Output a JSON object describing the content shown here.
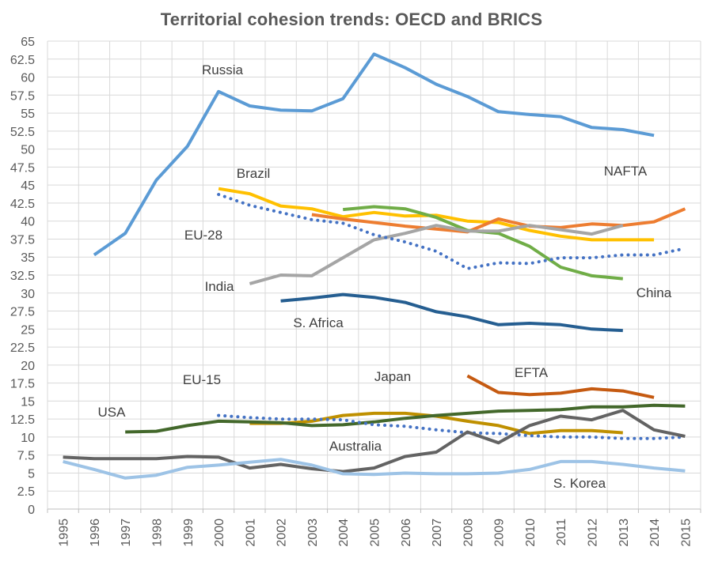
{
  "chart_data": {
    "type": "line",
    "title": "Territorial cohesion trends: OECD and BRICS",
    "xlabel": "",
    "ylabel": "",
    "ylim": [
      0,
      65
    ],
    "yticks": [
      "0",
      "2.5",
      "5",
      "7.5",
      "10",
      "12.5",
      "15",
      "17.5",
      "20",
      "22.5",
      "25",
      "27.5",
      "30",
      "32.5",
      "35",
      "37.5",
      "40",
      "42.5",
      "45",
      "47.5",
      "50",
      "52.5",
      "55",
      "57.5",
      "60",
      "62.5",
      "65"
    ],
    "x": [
      "1995",
      "1996",
      "1997",
      "1998",
      "1999",
      "2000",
      "2001",
      "2002",
      "2003",
      "2004",
      "2005",
      "2006",
      "2007",
      "2008",
      "2009",
      "2010",
      "2011",
      "2012",
      "2013",
      "2014",
      "2015"
    ],
    "grid": true,
    "legend": "inline labels",
    "series": [
      {
        "name": "Russia",
        "color": "#5b9bd5",
        "dash": false,
        "values": [
          null,
          35.3,
          38.3,
          45.7,
          50.4,
          58.0,
          56.0,
          55.4,
          55.3,
          57.0,
          63.2,
          61.3,
          59.0,
          57.3,
          55.2,
          54.8,
          54.5,
          53.0,
          52.7,
          51.9,
          null
        ]
      },
      {
        "name": "Brazil",
        "color": "#ffc000",
        "dash": false,
        "values": [
          null,
          null,
          null,
          null,
          null,
          44.5,
          43.8,
          42.1,
          41.7,
          40.6,
          41.2,
          40.7,
          40.8,
          40.0,
          39.8,
          38.7,
          37.9,
          37.4,
          37.4,
          37.4,
          null
        ]
      },
      {
        "name": "NAFTA",
        "color": "#ed7d31",
        "dash": false,
        "values": [
          null,
          null,
          null,
          null,
          null,
          null,
          null,
          null,
          40.9,
          40.3,
          39.8,
          39.3,
          38.9,
          38.5,
          40.3,
          39.3,
          39.1,
          39.6,
          39.4,
          39.9,
          41.7
        ]
      },
      {
        "name": "China",
        "color": "#70ad47",
        "dash": false,
        "values": [
          null,
          null,
          null,
          null,
          null,
          null,
          null,
          null,
          null,
          41.6,
          42.0,
          41.7,
          40.5,
          38.7,
          38.3,
          36.5,
          33.6,
          32.4,
          32.0,
          null,
          null
        ]
      },
      {
        "name": "India",
        "color": "#a5a5a5",
        "dash": false,
        "values": [
          null,
          null,
          null,
          null,
          null,
          null,
          31.3,
          32.5,
          32.4,
          34.9,
          37.4,
          38.3,
          39.4,
          38.6,
          38.6,
          39.4,
          38.8,
          38.2,
          39.4,
          null,
          null
        ]
      },
      {
        "name": "EU-28",
        "color": "#4472c4",
        "dash": true,
        "values": [
          null,
          null,
          null,
          null,
          null,
          43.7,
          42.2,
          41.2,
          40.2,
          39.7,
          38.1,
          37.1,
          35.8,
          33.4,
          34.2,
          34.1,
          34.9,
          34.9,
          35.3,
          35.3,
          36.2
        ]
      },
      {
        "name": "S. Africa",
        "color": "#255e91",
        "dash": false,
        "values": [
          null,
          null,
          null,
          null,
          null,
          null,
          null,
          28.9,
          29.3,
          29.8,
          29.4,
          28.7,
          27.4,
          26.7,
          25.6,
          25.8,
          25.6,
          25.0,
          24.8,
          null,
          null
        ]
      },
      {
        "name": "EFTA",
        "color": "#c55a11",
        "dash": false,
        "values": [
          null,
          null,
          null,
          null,
          null,
          null,
          null,
          null,
          null,
          null,
          null,
          null,
          null,
          18.5,
          16.2,
          15.9,
          16.1,
          16.7,
          16.4,
          15.5,
          null
        ]
      },
      {
        "name": "Japan",
        "color": "#bf9000",
        "dash": false,
        "values": [
          null,
          null,
          null,
          null,
          null,
          null,
          11.9,
          11.9,
          12.2,
          13.0,
          13.3,
          13.3,
          12.9,
          12.2,
          11.6,
          10.5,
          10.9,
          10.9,
          10.6,
          null,
          null
        ]
      },
      {
        "name": "USA",
        "color": "#43682b",
        "dash": false,
        "values": [
          null,
          null,
          10.7,
          10.8,
          11.6,
          12.2,
          12.1,
          12.0,
          11.6,
          11.7,
          12.1,
          12.6,
          13.0,
          13.3,
          13.6,
          13.7,
          13.8,
          14.2,
          14.2,
          14.4,
          14.3
        ]
      },
      {
        "name": "EU-15",
        "color": "#4472c4",
        "dash": true,
        "values": [
          null,
          null,
          null,
          null,
          null,
          13.0,
          12.7,
          12.5,
          12.5,
          12.4,
          11.7,
          11.5,
          11.0,
          10.6,
          10.5,
          10.2,
          10.0,
          10.0,
          9.8,
          9.8,
          10.0
        ]
      },
      {
        "name": "Australia",
        "color": "#636363",
        "dash": false,
        "values": [
          7.2,
          7.0,
          7.0,
          7.0,
          7.3,
          7.2,
          5.7,
          6.2,
          5.6,
          5.2,
          5.7,
          7.3,
          7.9,
          10.7,
          9.2,
          11.6,
          12.9,
          12.4,
          13.7,
          11.0,
          10.1
        ]
      },
      {
        "name": "S. Korea",
        "color": "#9dc3e6",
        "dash": false,
        "values": [
          6.6,
          5.5,
          4.3,
          4.7,
          5.8,
          6.1,
          6.5,
          6.9,
          6.1,
          4.9,
          4.8,
          5.0,
          4.9,
          4.9,
          5.0,
          5.5,
          6.6,
          6.6,
          6.2,
          5.7,
          5.3
        ]
      }
    ]
  }
}
